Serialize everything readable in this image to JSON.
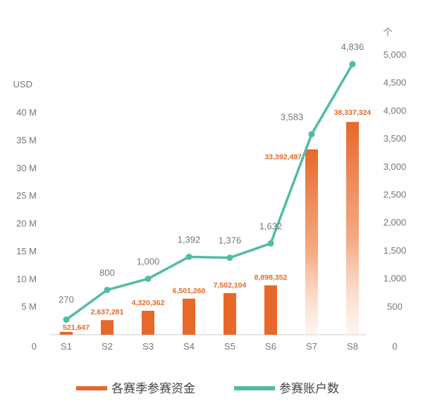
{
  "chart_data": {
    "type": "bar",
    "categories": [
      "S1",
      "S2",
      "S3",
      "S4",
      "S5",
      "S6",
      "S7",
      "S8"
    ],
    "series": [
      {
        "name": "各赛季参赛资金",
        "type": "bar",
        "axis": "left",
        "color": "#e8682a",
        "values": [
          521647,
          2637281,
          4320362,
          6501260,
          7502104,
          8898352,
          33392497,
          38337324
        ],
        "labels": [
          "521,647",
          "2,637,281",
          "4,320,362",
          "6,501,260",
          "7,502,104",
          "8,898,352",
          "33,392,497",
          "38,337,324"
        ]
      },
      {
        "name": "参赛账户数",
        "type": "line",
        "axis": "right",
        "color": "#52bba5",
        "values": [
          270,
          800,
          1000,
          1392,
          1376,
          1632,
          3583,
          4836
        ],
        "labels": [
          "270",
          "800",
          "1,000",
          "1,392",
          "1,376",
          "1,632",
          "3,583",
          "4,836"
        ]
      }
    ],
    "left_axis": {
      "unit_label": "USD",
      "ticks": [
        "0",
        "5 M",
        "10 M",
        "15 M",
        "20 M",
        "25 M",
        "30 M",
        "35 M",
        "40 M"
      ],
      "range": [
        0,
        40000000
      ]
    },
    "right_axis": {
      "unit_label": "个",
      "ticks": [
        "0",
        "500",
        "1,000",
        "1,500",
        "2,000",
        "2,500",
        "3,000",
        "3,500",
        "4,000",
        "4,500",
        "5,000"
      ],
      "range": [
        0,
        5000
      ]
    },
    "grid": false,
    "legend": "bottom"
  }
}
